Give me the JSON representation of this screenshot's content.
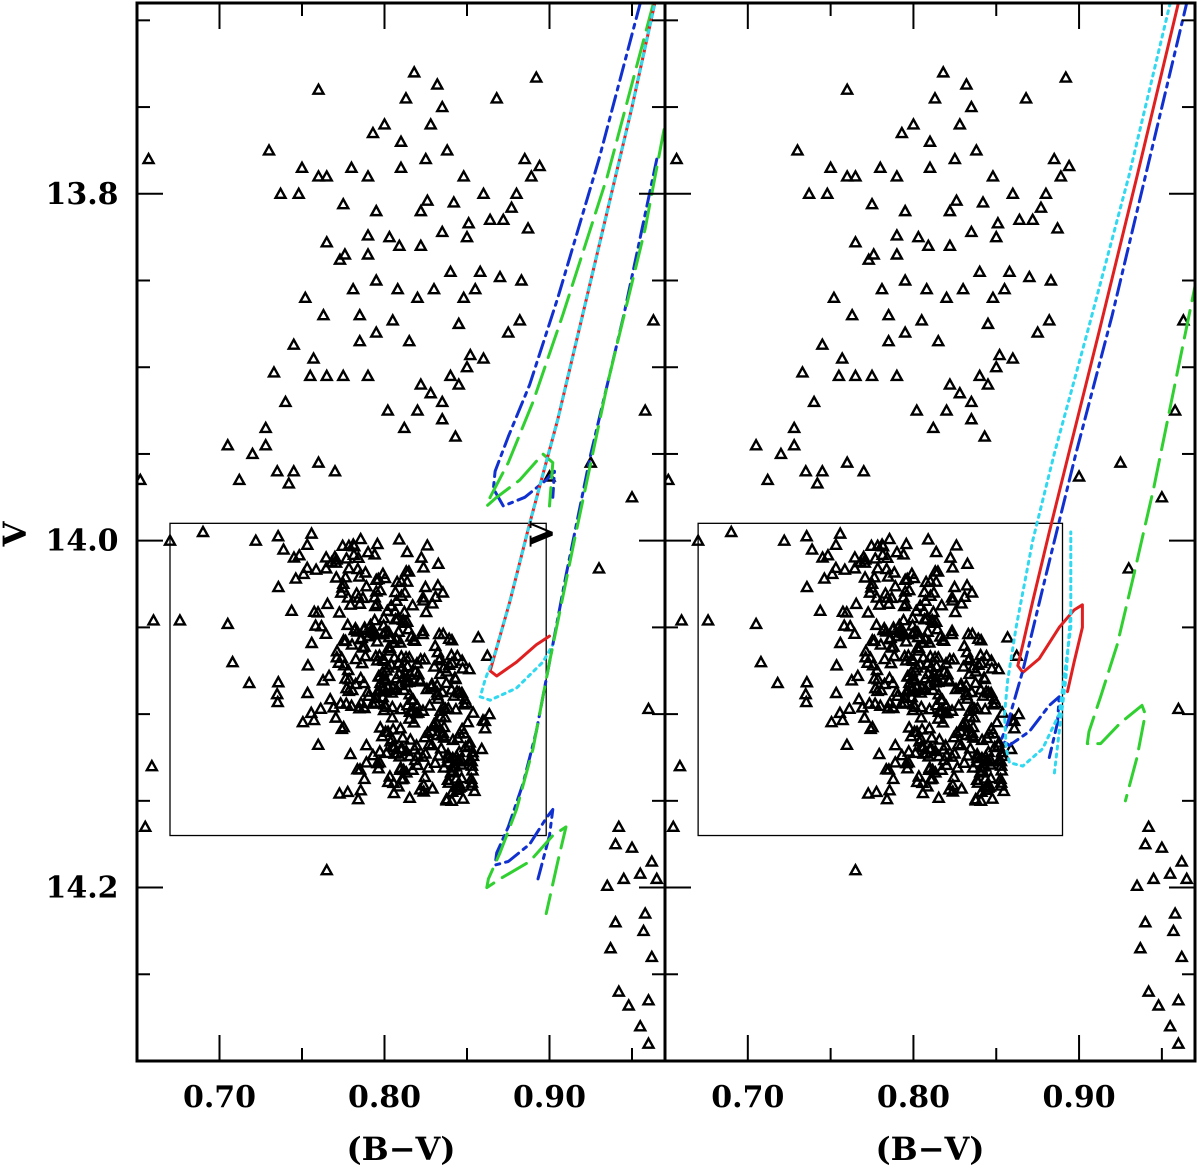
{
  "chart_data": [
    {
      "type": "scatter",
      "panel": "left",
      "xlabel": "(B−V)",
      "ylabel": "V",
      "inset_ylabel": "V",
      "xlim": [
        0.65,
        0.97
      ],
      "ylim": [
        14.3,
        13.69
      ],
      "y_inverted": true,
      "x_ticks": [
        0.7,
        0.8,
        0.9
      ],
      "x_tick_labels": [
        "0.70",
        "0.80",
        "0.90"
      ],
      "y_ticks": [
        13.8,
        14.0,
        14.2
      ],
      "y_tick_labels": [
        "13.8",
        "14.0",
        "14.2"
      ],
      "selection_box": {
        "x0": 0.67,
        "x1": 0.898,
        "y0": 13.99,
        "y1": 14.17
      },
      "isochrones": [
        {
          "name": "blue dash-dot (brighter sequence)",
          "color": "#1030d0",
          "dash": "16,6,4,6",
          "width": 3,
          "points": [
            [
              0.955,
              13.69
            ],
            [
              0.93,
              13.78
            ],
            [
              0.905,
              13.86
            ],
            [
              0.888,
              13.91
            ],
            [
              0.875,
              13.94
            ],
            [
              0.867,
              13.96
            ],
            [
              0.866,
              13.97
            ],
            [
              0.872,
              13.98
            ],
            [
              0.885,
              13.975
            ],
            [
              0.898,
              13.965
            ],
            [
              0.903,
              13.96
            ],
            [
              0.902,
              13.975
            ]
          ]
        },
        {
          "name": "green long-dash (brighter sequence)",
          "color": "#30d030",
          "dash": "28,10",
          "width": 3,
          "points": [
            [
              0.963,
              13.69
            ],
            [
              0.935,
              13.79
            ],
            [
              0.908,
              13.87
            ],
            [
              0.89,
              13.92
            ],
            [
              0.875,
              13.955
            ],
            [
              0.864,
              13.975
            ],
            [
              0.862,
              13.98
            ],
            [
              0.868,
              13.975
            ],
            [
              0.882,
              13.965
            ],
            [
              0.896,
              13.95
            ],
            [
              0.902,
              13.955
            ],
            [
              0.9,
              13.98
            ]
          ]
        },
        {
          "name": "red solid (main sequence fit)",
          "color": "#e02020",
          "dash": "none",
          "width": 3,
          "points": [
            [
              0.98,
              13.62
            ],
            [
              0.95,
              13.75
            ],
            [
              0.925,
              13.85
            ],
            [
              0.905,
              13.93
            ],
            [
              0.888,
              13.99
            ],
            [
              0.876,
              14.035
            ],
            [
              0.867,
              14.065
            ],
            [
              0.864,
              14.075
            ],
            [
              0.868,
              14.078
            ],
            [
              0.88,
              14.07
            ],
            [
              0.892,
              14.06
            ],
            [
              0.9,
              14.055
            ]
          ]
        },
        {
          "name": "cyan dotted (main sequence fit)",
          "color": "#30d8f0",
          "dash": "3,5",
          "width": 3,
          "points": [
            [
              0.98,
              13.62
            ],
            [
              0.95,
              13.75
            ],
            [
              0.925,
              13.85
            ],
            [
              0.905,
              13.93
            ],
            [
              0.888,
              13.99
            ],
            [
              0.876,
              14.035
            ],
            [
              0.867,
              14.065
            ],
            [
              0.861,
              14.08
            ],
            [
              0.858,
              14.09
            ],
            [
              0.864,
              14.092
            ],
            [
              0.88,
              14.085
            ],
            [
              0.896,
              14.07
            ],
            [
              0.902,
              14.06
            ]
          ]
        },
        {
          "name": "blue dash-dot (fainter sequence)",
          "color": "#1030d0",
          "dash": "16,6,4,6",
          "width": 3,
          "points": [
            [
              0.965,
              13.78
            ],
            [
              0.945,
              13.87
            ],
            [
              0.925,
              13.95
            ],
            [
              0.91,
              14.02
            ],
            [
              0.9,
              14.07
            ],
            [
              0.892,
              14.11
            ],
            [
              0.884,
              14.14
            ],
            [
              0.875,
              14.165
            ],
            [
              0.868,
              14.18
            ],
            [
              0.867,
              14.187
            ],
            [
              0.875,
              14.185
            ],
            [
              0.888,
              14.175
            ],
            [
              0.898,
              14.16
            ],
            [
              0.902,
              14.155
            ],
            [
              0.9,
              14.17
            ],
            [
              0.893,
              14.195
            ]
          ]
        },
        {
          "name": "green long-dash (fainter sequence)",
          "color": "#30d030",
          "dash": "28,10",
          "width": 3,
          "points": [
            [
              0.978,
              13.72
            ],
            [
              0.958,
              13.82
            ],
            [
              0.935,
              13.91
            ],
            [
              0.915,
              14.0
            ],
            [
              0.9,
              14.07
            ],
            [
              0.89,
              14.12
            ],
            [
              0.88,
              14.155
            ],
            [
              0.87,
              14.18
            ],
            [
              0.863,
              14.195
            ],
            [
              0.862,
              14.2
            ],
            [
              0.87,
              14.195
            ],
            [
              0.888,
              14.185
            ],
            [
              0.902,
              14.17
            ],
            [
              0.91,
              14.165
            ],
            [
              0.905,
              14.185
            ],
            [
              0.898,
              14.215
            ]
          ]
        }
      ]
    },
    {
      "type": "scatter",
      "panel": "right",
      "xlabel": "(B−V)",
      "xlim": [
        0.65,
        0.97
      ],
      "ylim": [
        14.3,
        13.69
      ],
      "y_inverted": true,
      "x_ticks": [
        0.7,
        0.8,
        0.9
      ],
      "x_tick_labels": [
        "0.70",
        "0.80",
        "0.90"
      ],
      "y_ticks": [
        13.8,
        14.0,
        14.2
      ],
      "selection_box": {
        "x0": 0.67,
        "x1": 0.89,
        "y0": 13.99,
        "y1": 14.17
      },
      "isochrones": [
        {
          "name": "red solid",
          "color": "#e02020",
          "dash": "none",
          "width": 3,
          "points": [
            [
              0.96,
              13.69
            ],
            [
              0.935,
              13.79
            ],
            [
              0.912,
              13.88
            ],
            [
              0.895,
              13.945
            ],
            [
              0.882,
              13.995
            ],
            [
              0.872,
              14.035
            ],
            [
              0.866,
              14.06
            ],
            [
              0.863,
              14.072
            ],
            [
              0.866,
              14.076
            ],
            [
              0.876,
              14.068
            ],
            [
              0.888,
              14.05
            ],
            [
              0.897,
              14.04
            ],
            [
              0.902,
              14.037
            ],
            [
              0.902,
              14.05
            ],
            [
              0.897,
              14.07
            ],
            [
              0.893,
              14.087
            ]
          ]
        },
        {
          "name": "blue dash-dot",
          "color": "#1030d0",
          "dash": "16,6,4,6",
          "width": 3,
          "points": [
            [
              0.97,
              13.67
            ],
            [
              0.945,
              13.77
            ],
            [
              0.92,
              13.87
            ],
            [
              0.898,
              13.95
            ],
            [
              0.88,
              14.02
            ],
            [
              0.866,
              14.075
            ],
            [
              0.857,
              14.105
            ],
            [
              0.853,
              14.115
            ],
            [
              0.858,
              14.118
            ],
            [
              0.87,
              14.11
            ],
            [
              0.882,
              14.095
            ],
            [
              0.888,
              14.09
            ],
            [
              0.887,
              14.105
            ],
            [
              0.882,
              14.125
            ]
          ]
        },
        {
          "name": "cyan dotted",
          "color": "#30d8f0",
          "dash": "3,5",
          "width": 3,
          "points": [
            [
              0.955,
              13.69
            ],
            [
              0.93,
              13.79
            ],
            [
              0.905,
              13.88
            ],
            [
              0.885,
              13.95
            ],
            [
              0.872,
              14.0
            ],
            [
              0.862,
              14.05
            ],
            [
              0.857,
              14.08
            ],
            [
              0.855,
              14.1
            ],
            [
              0.856,
              14.12
            ],
            [
              0.858,
              14.128
            ],
            [
              0.866,
              14.13
            ],
            [
              0.878,
              14.12
            ],
            [
              0.888,
              14.1
            ],
            [
              0.895,
              14.05
            ],
            [
              0.895,
              13.995
            ],
            [
              0.895,
              14.04
            ],
            [
              0.892,
              14.08
            ],
            [
              0.888,
              14.11
            ],
            [
              0.885,
              14.135
            ]
          ]
        },
        {
          "name": "green long-dash",
          "color": "#30d030",
          "dash": "28,10",
          "width": 3,
          "points": [
            [
              0.99,
              13.76
            ],
            [
              0.975,
              13.83
            ],
            [
              0.96,
              13.9
            ],
            [
              0.945,
              13.97
            ],
            [
              0.933,
              14.02
            ],
            [
              0.923,
              14.06
            ],
            [
              0.913,
              14.09
            ],
            [
              0.906,
              14.11
            ],
            [
              0.905,
              14.117
            ],
            [
              0.913,
              14.117
            ],
            [
              0.925,
              14.105
            ],
            [
              0.938,
              14.095
            ],
            [
              0.94,
              14.1
            ],
            [
              0.935,
              14.125
            ],
            [
              0.928,
              14.15
            ]
          ]
        }
      ]
    }
  ],
  "stars": {
    "field": [
      [
        0.652,
        13.965
      ],
      [
        0.657,
        13.78
      ],
      [
        0.66,
        14.046
      ],
      [
        0.655,
        14.165
      ],
      [
        0.659,
        14.13
      ],
      [
        0.67,
        14.0
      ],
      [
        0.676,
        14.046
      ],
      [
        0.69,
        13.995
      ],
      [
        0.705,
        14.048
      ],
      [
        0.712,
        13.965
      ],
      [
        0.722,
        14.0
      ],
      [
        0.728,
        13.945
      ],
      [
        0.742,
        13.967
      ],
      [
        0.76,
        13.955
      ],
      [
        0.77,
        13.96
      ],
      [
        0.728,
        13.935
      ],
      [
        0.735,
        13.96
      ],
      [
        0.745,
        13.96
      ],
      [
        0.705,
        13.945
      ],
      [
        0.72,
        13.95
      ],
      [
        0.733,
        13.903
      ],
      [
        0.74,
        13.92
      ],
      [
        0.755,
        13.905
      ],
      [
        0.752,
        13.86
      ],
      [
        0.763,
        13.87
      ],
      [
        0.773,
        13.838
      ],
      [
        0.781,
        13.855
      ],
      [
        0.745,
        13.887
      ],
      [
        0.757,
        13.895
      ],
      [
        0.765,
        13.905
      ],
      [
        0.775,
        13.905
      ],
      [
        0.79,
        13.905
      ],
      [
        0.802,
        13.925
      ],
      [
        0.812,
        13.935
      ],
      [
        0.82,
        13.925
      ],
      [
        0.828,
        13.915
      ],
      [
        0.84,
        13.905
      ],
      [
        0.85,
        13.9
      ],
      [
        0.845,
        13.91
      ],
      [
        0.835,
        13.93
      ],
      [
        0.843,
        13.94
      ],
      [
        0.835,
        13.92
      ],
      [
        0.822,
        13.91
      ],
      [
        0.815,
        13.885
      ],
      [
        0.805,
        13.873
      ],
      [
        0.795,
        13.88
      ],
      [
        0.785,
        13.885
      ],
      [
        0.785,
        13.87
      ],
      [
        0.795,
        13.85
      ],
      [
        0.808,
        13.855
      ],
      [
        0.82,
        13.86
      ],
      [
        0.83,
        13.855
      ],
      [
        0.84,
        13.845
      ],
      [
        0.848,
        13.86
      ],
      [
        0.855,
        13.855
      ],
      [
        0.858,
        13.845
      ],
      [
        0.852,
        13.893
      ],
      [
        0.845,
        13.875
      ],
      [
        0.822,
        13.83
      ],
      [
        0.835,
        13.822
      ],
      [
        0.85,
        13.825
      ],
      [
        0.822,
        13.81
      ],
      [
        0.776,
        13.835
      ],
      [
        0.765,
        13.828
      ],
      [
        0.79,
        13.835
      ],
      [
        0.872,
        13.815
      ],
      [
        0.86,
        13.8
      ],
      [
        0.848,
        13.79
      ],
      [
        0.838,
        13.775
      ],
      [
        0.825,
        13.78
      ],
      [
        0.81,
        13.785
      ],
      [
        0.8,
        13.76
      ],
      [
        0.793,
        13.765
      ],
      [
        0.78,
        13.785
      ],
      [
        0.76,
        13.79
      ],
      [
        0.748,
        13.8
      ],
      [
        0.737,
        13.8
      ],
      [
        0.73,
        13.775
      ],
      [
        0.75,
        13.785
      ],
      [
        0.765,
        13.79
      ],
      [
        0.835,
        13.75
      ],
      [
        0.828,
        13.76
      ],
      [
        0.813,
        13.745
      ],
      [
        0.809,
        13.83
      ],
      [
        0.795,
        13.81
      ],
      [
        0.803,
        13.825
      ],
      [
        0.79,
        13.824
      ],
      [
        0.775,
        13.806
      ],
      [
        0.76,
        13.74
      ],
      [
        0.79,
        13.79
      ],
      [
        0.81,
        13.77
      ],
      [
        0.826,
        13.804
      ],
      [
        0.842,
        13.805
      ],
      [
        0.851,
        13.817
      ],
      [
        0.864,
        13.815
      ],
      [
        0.818,
        13.73
      ],
      [
        0.832,
        13.737
      ],
      [
        0.87,
        13.848
      ],
      [
        0.882,
        13.873
      ],
      [
        0.875,
        13.88
      ],
      [
        0.86,
        13.895
      ],
      [
        0.885,
        13.78
      ],
      [
        0.894,
        13.784
      ],
      [
        0.892,
        13.733
      ],
      [
        0.889,
        13.79
      ],
      [
        0.887,
        13.82
      ],
      [
        0.88,
        13.8
      ],
      [
        0.868,
        13.745
      ],
      [
        0.883,
        13.85
      ],
      [
        0.877,
        13.808
      ],
      [
        0.9,
        13.963
      ],
      [
        0.925,
        13.955
      ],
      [
        0.93,
        14.016
      ],
      [
        0.95,
        13.975
      ],
      [
        0.958,
        13.925
      ],
      [
        0.963,
        13.873
      ],
      [
        0.96,
        14.097
      ],
      [
        0.942,
        14.165
      ],
      [
        0.937,
        14.235
      ],
      [
        0.942,
        14.26
      ],
      [
        0.948,
        14.268
      ],
      [
        0.955,
        14.28
      ],
      [
        0.96,
        14.29
      ],
      [
        0.962,
        14.24
      ],
      [
        0.957,
        14.225
      ],
      [
        0.958,
        14.215
      ],
      [
        0.962,
        14.185
      ],
      [
        0.965,
        14.195
      ],
      [
        0.955,
        14.192
      ],
      [
        0.95,
        14.177
      ],
      [
        0.94,
        14.175
      ],
      [
        0.945,
        14.195
      ],
      [
        0.935,
        14.199
      ],
      [
        0.94,
        14.22
      ],
      [
        0.96,
        14.265
      ],
      [
        0.765,
        14.19
      ]
    ],
    "cluster_center": [
      0.808,
      14.08
    ],
    "cluster_count": 430,
    "cluster_spread": [
      0.03,
      0.04
    ],
    "marker": "open-triangle"
  }
}
